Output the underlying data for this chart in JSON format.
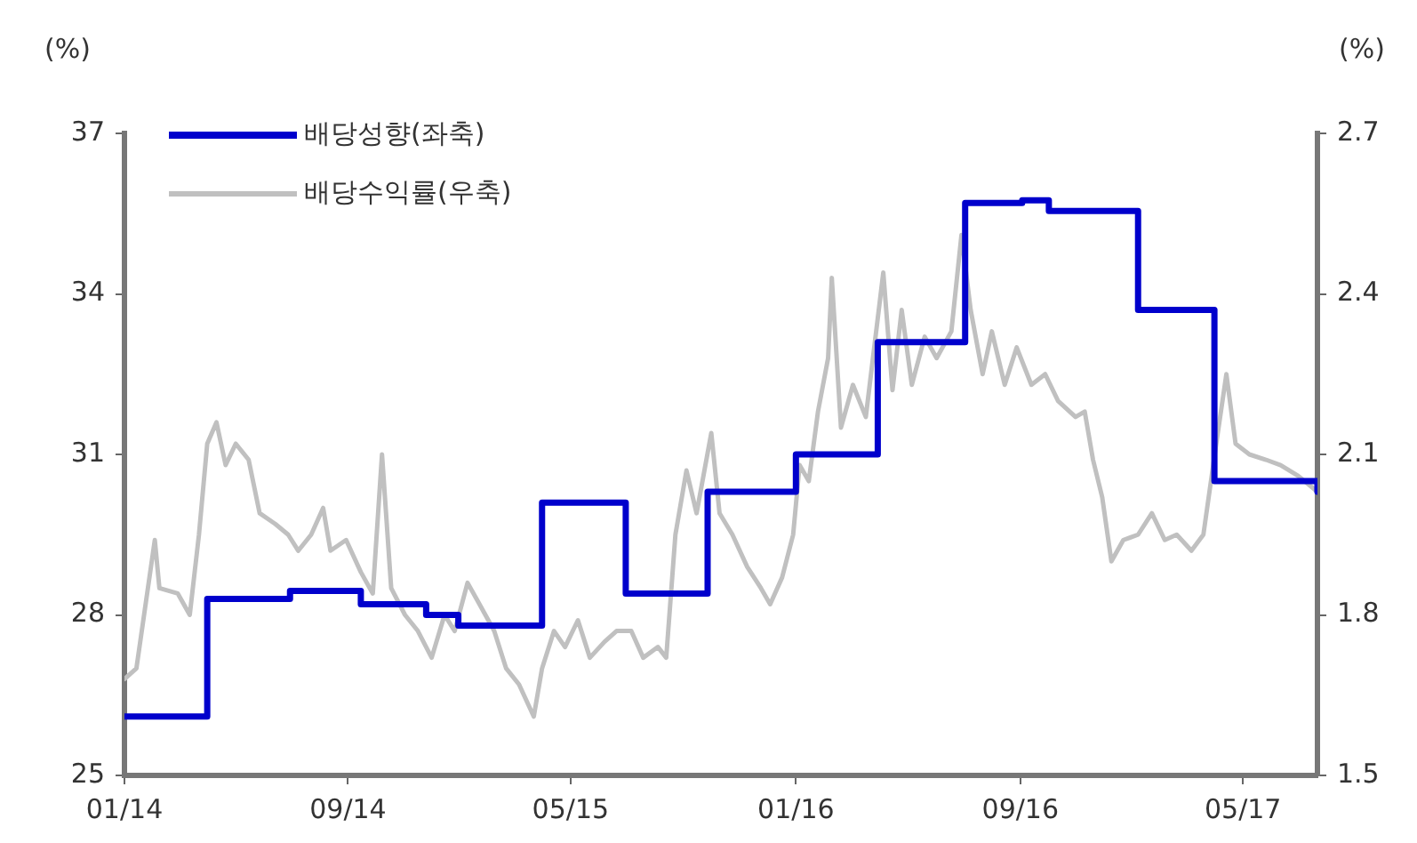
{
  "chart_data": {
    "type": "line",
    "ylabel": "(%)",
    "y2label": "(%)",
    "legend": "top left",
    "grid": false,
    "xlim": [
      "2014-01-01",
      "2017-07-21"
    ],
    "xticks": [
      {
        "value": "2014-01-01",
        "label": "01/14"
      },
      {
        "value": "2014-09-01",
        "label": "09/14"
      },
      {
        "value": "2015-05-01",
        "label": "05/15"
      },
      {
        "value": "2016-01-01",
        "label": "01/16"
      },
      {
        "value": "2016-09-01",
        "label": "09/16"
      },
      {
        "value": "2017-05-01",
        "label": "05/17"
      }
    ],
    "ylim": [
      25,
      37
    ],
    "yticks": [
      25,
      28,
      31,
      34,
      37
    ],
    "y2lim": [
      1.5,
      2.7
    ],
    "y2ticks": [
      1.5,
      1.8,
      2.1,
      2.4,
      2.7
    ],
    "series": [
      {
        "name": "배당성향(좌축)",
        "type": "step",
        "color": "#0000cc",
        "x": [
          "2014-01-01",
          "2014-04-01",
          "2014-06-30",
          "2014-09-15",
          "2014-11-25",
          "2014-12-30",
          "2015-03-31",
          "2015-06-30",
          "2015-09-27",
          "2016-01-01",
          "2016-03-30",
          "2016-07-03",
          "2016-09-03",
          "2016-10-02",
          "2017-01-07",
          "2017-03-31",
          "2017-07-21"
        ],
        "values": [
          26.1,
          28.3,
          28.45,
          28.2,
          28.0,
          27.8,
          30.1,
          28.4,
          30.3,
          31.0,
          33.1,
          35.7,
          35.75,
          35.55,
          33.7,
          30.5,
          30.3
        ]
      },
      {
        "name": "배당수익률(우축)",
        "axis": "y2",
        "color": "#c0c0c0",
        "x": [
          "2014-01-01",
          "2014-01-14",
          "2014-02-03",
          "2014-02-08",
          "2014-02-28",
          "2014-03-13",
          "2014-03-23",
          "2014-04-01",
          "2014-04-11",
          "2014-04-21",
          "2014-05-02",
          "2014-05-16",
          "2014-05-28",
          "2014-06-14",
          "2014-06-28",
          "2014-07-09",
          "2014-07-23",
          "2014-08-05",
          "2014-08-13",
          "2014-08-30",
          "2014-09-15",
          "2014-09-28",
          "2014-10-08",
          "2014-10-18",
          "2014-11-02",
          "2014-11-16",
          "2014-12-01",
          "2014-12-15",
          "2014-12-26",
          "2015-01-09",
          "2015-01-22",
          "2015-02-07",
          "2015-02-20",
          "2015-03-06",
          "2015-03-22",
          "2015-03-31",
          "2015-04-13",
          "2015-04-25",
          "2015-05-09",
          "2015-05-22",
          "2015-06-07",
          "2015-06-20",
          "2015-07-06",
          "2015-07-19",
          "2015-08-04",
          "2015-08-13",
          "2015-08-23",
          "2015-09-04",
          "2015-09-15",
          "2015-10-01",
          "2015-10-10",
          "2015-10-24",
          "2015-11-09",
          "2015-11-24",
          "2015-12-04",
          "2015-12-17",
          "2015-12-29",
          "2016-01-05",
          "2016-01-15",
          "2016-01-25",
          "2016-02-05",
          "2016-02-09",
          "2016-02-19",
          "2016-03-03",
          "2016-03-17",
          "2016-04-05",
          "2016-04-15",
          "2016-04-25",
          "2016-05-06",
          "2016-05-20",
          "2016-06-02",
          "2016-06-18",
          "2016-06-29",
          "2016-07-09",
          "2016-07-22",
          "2016-08-01",
          "2016-08-15",
          "2016-08-28",
          "2016-09-13",
          "2016-09-28",
          "2016-10-12",
          "2016-10-31",
          "2016-11-10",
          "2016-11-19",
          "2016-11-29",
          "2016-12-09",
          "2016-12-22",
          "2017-01-07",
          "2017-01-22",
          "2017-02-05",
          "2017-02-18",
          "2017-03-06",
          "2017-03-19",
          "2017-04-02",
          "2017-04-13",
          "2017-04-23",
          "2017-05-08",
          "2017-05-26",
          "2017-06-11",
          "2017-06-30",
          "2017-07-21"
        ],
        "values": [
          1.68,
          1.7,
          1.94,
          1.85,
          1.84,
          1.8,
          1.95,
          2.12,
          2.16,
          2.08,
          2.12,
          2.09,
          1.99,
          1.97,
          1.95,
          1.92,
          1.95,
          2.0,
          1.92,
          1.94,
          1.88,
          1.84,
          2.1,
          1.85,
          1.8,
          1.77,
          1.72,
          1.8,
          1.77,
          1.86,
          1.82,
          1.77,
          1.7,
          1.67,
          1.61,
          1.7,
          1.77,
          1.74,
          1.79,
          1.72,
          1.75,
          1.77,
          1.77,
          1.72,
          1.74,
          1.72,
          1.95,
          2.07,
          1.99,
          2.14,
          1.99,
          1.95,
          1.89,
          1.85,
          1.82,
          1.87,
          1.95,
          2.08,
          2.05,
          2.18,
          2.28,
          2.43,
          2.15,
          2.23,
          2.17,
          2.44,
          2.22,
          2.37,
          2.23,
          2.32,
          2.28,
          2.33,
          2.51,
          2.37,
          2.25,
          2.33,
          2.23,
          2.3,
          2.23,
          2.25,
          2.2,
          2.17,
          2.18,
          2.09,
          2.02,
          1.9,
          1.94,
          1.95,
          1.99,
          1.94,
          1.95,
          1.92,
          1.95,
          2.12,
          2.25,
          2.12,
          2.1,
          2.09,
          2.08,
          2.06,
          2.03
        ]
      }
    ]
  }
}
